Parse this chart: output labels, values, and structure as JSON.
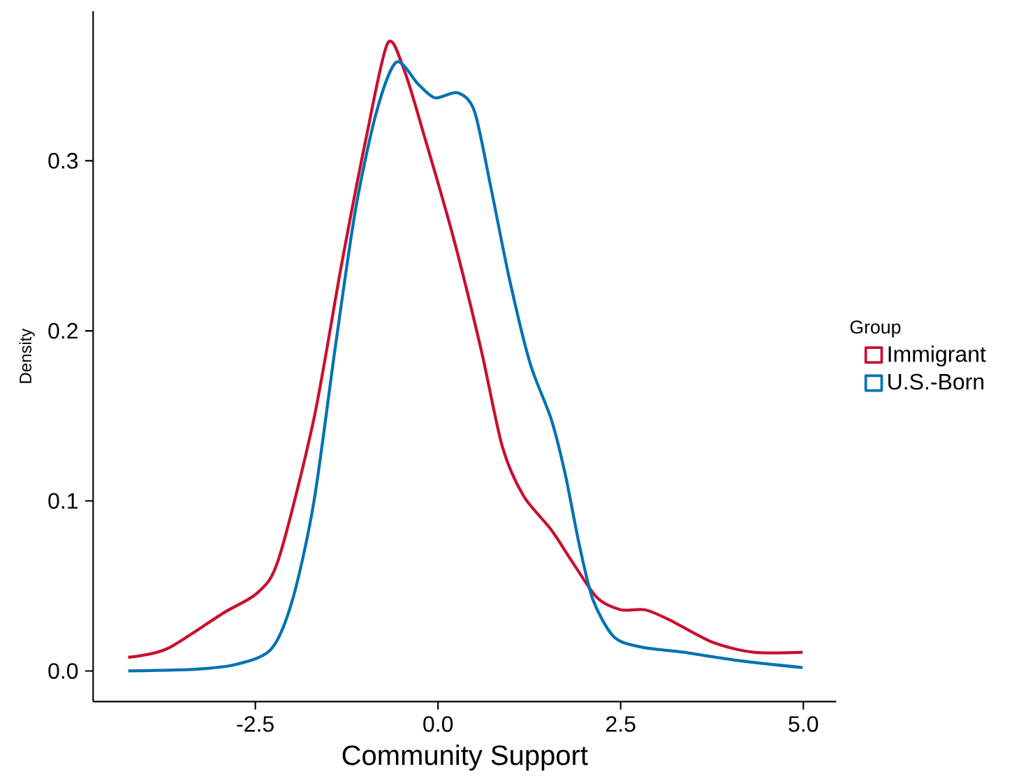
{
  "chart_data": {
    "type": "line",
    "xlabel": "Community Support",
    "ylabel": "Density",
    "legend_title": "Group",
    "legend": "right",
    "xlim": [
      -4.72,
      5.45
    ],
    "ylim": [
      -0.018,
      0.388
    ],
    "xticks": [
      {
        "value": -2.5,
        "label": "-2.5"
      },
      {
        "value": 0,
        "label": "0.0"
      },
      {
        "value": 2.5,
        "label": "2.5"
      },
      {
        "value": 5,
        "label": "5.0"
      }
    ],
    "yticks": [
      {
        "value": 0,
        "label": "0.0"
      },
      {
        "value": 0.1,
        "label": "0.1"
      },
      {
        "value": 0.2,
        "label": "0.2"
      },
      {
        "value": 0.3,
        "label": "0.3"
      }
    ],
    "series": [
      {
        "name": "Immigrant",
        "color": "#c8102e",
        "x": [
          -4.24,
          -3.71,
          -2.94,
          -2.47,
          -2.18,
          -1.7,
          -1.32,
          -0.99,
          -0.69,
          -0.46,
          -0.17,
          0.21,
          0.59,
          0.88,
          1.17,
          1.55,
          1.87,
          2.18,
          2.5,
          2.83,
          3.17,
          3.75,
          4.32,
          4.99
        ],
        "values": [
          0.008,
          0.013,
          0.034,
          0.046,
          0.066,
          0.148,
          0.239,
          0.312,
          0.369,
          0.353,
          0.312,
          0.255,
          0.189,
          0.132,
          0.103,
          0.083,
          0.062,
          0.043,
          0.036,
          0.036,
          0.03,
          0.017,
          0.011,
          0.011
        ]
      },
      {
        "name": "U.S.-Born",
        "color": "#0072b2",
        "x": [
          -4.24,
          -3.33,
          -2.75,
          -2.28,
          -1.99,
          -1.7,
          -1.41,
          -1.13,
          -0.84,
          -0.57,
          -0.27,
          -0.04,
          0.27,
          0.5,
          0.73,
          0.98,
          1.26,
          1.55,
          1.74,
          1.93,
          2.12,
          2.41,
          2.79,
          3.36,
          4.13,
          4.99
        ],
        "values": [
          0.0,
          0.001,
          0.004,
          0.013,
          0.042,
          0.099,
          0.189,
          0.271,
          0.329,
          0.358,
          0.345,
          0.337,
          0.34,
          0.329,
          0.283,
          0.23,
          0.181,
          0.148,
          0.116,
          0.075,
          0.042,
          0.02,
          0.014,
          0.011,
          0.006,
          0.002
        ]
      }
    ]
  }
}
